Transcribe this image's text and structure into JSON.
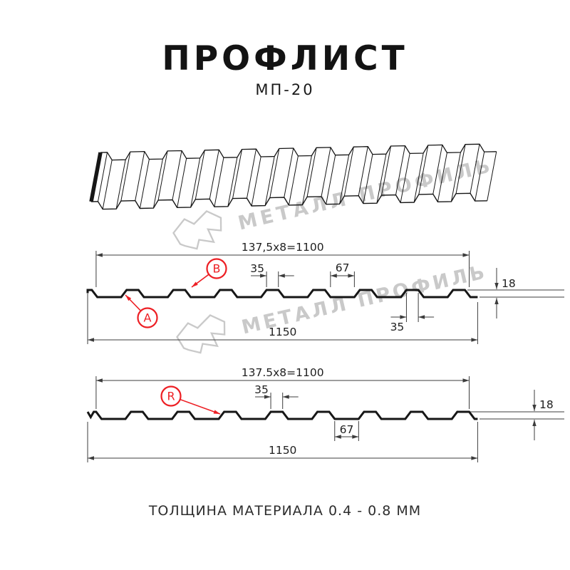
{
  "header": {
    "title": "ПРОФЛИСТ",
    "subtitle": "МП-20"
  },
  "footer": {
    "text": "ТОЛЩИНА МАТЕРИАЛА 0.4 - 0.8 ММ"
  },
  "watermark": {
    "text": "МЕТАЛЛ ПРОФИЛЬ"
  },
  "colors": {
    "line": "#161616",
    "dim": "#3c3c3c",
    "red": "#ed1f24",
    "watermark": "#c9c9c9"
  },
  "profile_spec": {
    "name": "МП-20",
    "pitch_mm": 137.5,
    "ribs": 8,
    "rib_top_mm": 35,
    "rib_base_mm": 67,
    "height_mm": 18,
    "total_width_mm": 1150,
    "useful_width_mm": 1100,
    "thickness_range_mm": "0.4 - 0.8"
  },
  "diagrams": [
    {
      "id": "front-view",
      "labels": [
        {
          "text": "A"
        },
        {
          "text": "B"
        }
      ],
      "dims": {
        "useful_width": "137,5x8=1100",
        "total_width": "1150",
        "rib_top": "35",
        "valley": "67",
        "height": "18",
        "rib_bottom": "35"
      }
    },
    {
      "id": "reverse-view",
      "labels": [
        {
          "text": "R"
        }
      ],
      "dims": {
        "useful_width": "137.5x8=1100",
        "total_width": "1150",
        "rib_top": "35",
        "valley": "67",
        "height": "18"
      }
    }
  ]
}
